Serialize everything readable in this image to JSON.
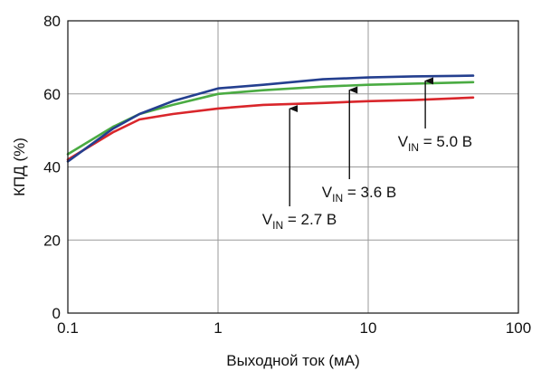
{
  "chart_data": {
    "type": "line",
    "xlabel": "Выходной ток (мА)",
    "ylabel": "КПД (%)",
    "xscale": "log",
    "xlim": [
      0.1,
      100
    ],
    "ylim": [
      0,
      80
    ],
    "xticks": [
      0.1,
      1,
      10,
      100
    ],
    "xtick_labels": [
      "0.1",
      "1",
      "10",
      "100"
    ],
    "yticks": [
      0,
      20,
      40,
      60,
      80
    ],
    "ytick_labels": [
      "0",
      "20",
      "40",
      "60",
      "80"
    ],
    "grid": true,
    "legend": "none",
    "series": [
      {
        "color": "#d9262b",
        "x": [
          0.1,
          0.2,
          0.3,
          0.5,
          1,
          2,
          5,
          10,
          20,
          50
        ],
        "y": [
          42,
          49.5,
          53,
          54.5,
          56,
          57,
          57.5,
          58,
          58.3,
          59
        ]
      },
      {
        "color": "#4aab42",
        "x": [
          0.1,
          0.2,
          0.3,
          0.5,
          1,
          2,
          5,
          10,
          20,
          50
        ],
        "y": [
          43.5,
          51,
          54.5,
          57,
          60,
          61,
          62,
          62.5,
          62.8,
          63.2
        ]
      },
      {
        "color": "#243f8f",
        "x": [
          0.1,
          0.2,
          0.3,
          0.5,
          1,
          2,
          5,
          10,
          20,
          50
        ],
        "y": [
          41.5,
          50.5,
          54.5,
          58,
          61.5,
          62.5,
          64,
          64.5,
          64.8,
          65
        ]
      }
    ],
    "annotations": [
      {
        "label_main": "V",
        "label_sub": "IN",
        "label_rest": " = 2.7 В",
        "target_x": 3,
        "target_y": 57.2
      },
      {
        "label_main": "V",
        "label_sub": "IN",
        "label_rest": " = 3.6 В",
        "target_x": 7.5,
        "target_y": 62.3
      },
      {
        "label_main": "V",
        "label_sub": "IN",
        "label_rest": " = 5.0 В",
        "target_x": 24,
        "target_y": 64.8
      }
    ]
  }
}
